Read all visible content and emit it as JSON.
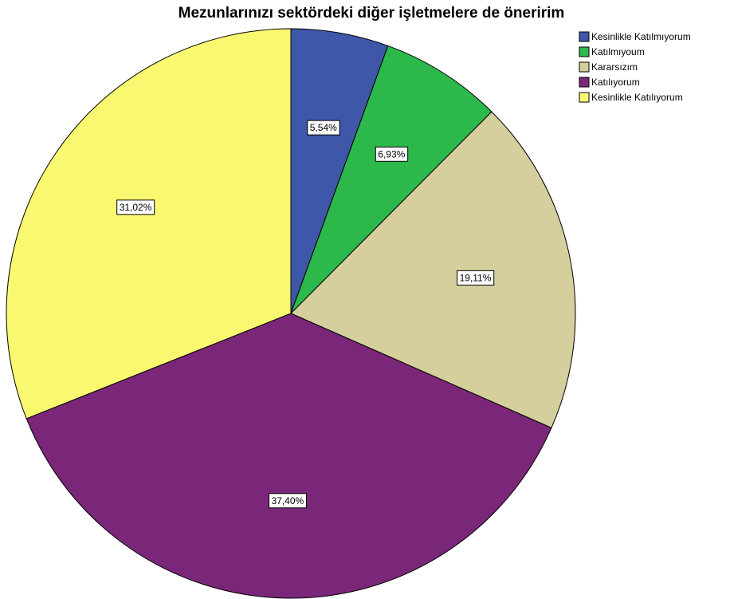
{
  "chart_data": {
    "type": "pie",
    "title": "Mezunlarınızı sektördeki diğer işletmelere de öneririm",
    "categories": [
      "Kesinlikle Katılmıyorum",
      "Katılmıyoum",
      "Kararsızım",
      "Katılıyorum",
      "Kesinlikle Katılıyorum"
    ],
    "values": [
      5.54,
      6.93,
      19.11,
      37.4,
      31.02
    ],
    "value_labels": [
      "5,54%",
      "6,93%",
      "19,11%",
      "37,40%",
      "31,02%"
    ],
    "colors": [
      "#3f57a8",
      "#2db84b",
      "#d4cf9c",
      "#7b2779",
      "#f9f871"
    ],
    "legend": "top-right"
  }
}
